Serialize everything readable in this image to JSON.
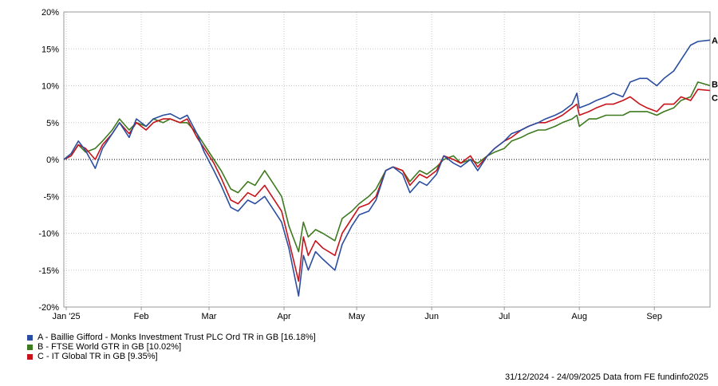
{
  "chart_data": {
    "type": "line",
    "ylim": [
      -20,
      20
    ],
    "yticks": [
      20,
      15,
      10,
      5,
      0,
      -5,
      -10,
      -15,
      -20
    ],
    "ytick_labels": [
      "20%",
      "15%",
      "10%",
      "5%",
      "0%",
      "-5%",
      "-10%",
      "-15%",
      "-20%"
    ],
    "x_start": "2024-12-31",
    "x_end": "2025-09-24",
    "xticks": [
      {
        "date": "2025-01-01",
        "label": "Jan '25"
      },
      {
        "date": "2025-02-01",
        "label": "Feb"
      },
      {
        "date": "2025-03-01",
        "label": "Mar"
      },
      {
        "date": "2025-04-01",
        "label": "Apr"
      },
      {
        "date": "2025-05-01",
        "label": "May"
      },
      {
        "date": "2025-06-01",
        "label": "Jun"
      },
      {
        "date": "2025-07-01",
        "label": "Jul"
      },
      {
        "date": "2025-08-01",
        "label": "Aug"
      },
      {
        "date": "2025-09-01",
        "label": "Sep"
      }
    ],
    "grid": true,
    "zero_line": "dotted",
    "series": [
      {
        "key": "A",
        "name": "A - Baillie Gifford - Monks Investment Trust PLC Ord TR in GB [16.18%]",
        "color": "#2b4ea1",
        "points": [
          [
            "2024-12-31",
            0
          ],
          [
            "2025-01-03",
            0.8
          ],
          [
            "2025-01-06",
            2.5
          ],
          [
            "2025-01-09",
            1.2
          ],
          [
            "2025-01-13",
            -1.2
          ],
          [
            "2025-01-16",
            1.5
          ],
          [
            "2025-01-20",
            3.5
          ],
          [
            "2025-01-23",
            5.0
          ],
          [
            "2025-01-27",
            3.0
          ],
          [
            "2025-01-30",
            5.5
          ],
          [
            "2025-02-03",
            4.5
          ],
          [
            "2025-02-06",
            5.5
          ],
          [
            "2025-02-10",
            6.0
          ],
          [
            "2025-02-13",
            6.2
          ],
          [
            "2025-02-17",
            5.5
          ],
          [
            "2025-02-20",
            6.0
          ],
          [
            "2025-02-24",
            3.5
          ],
          [
            "2025-02-27",
            1.0
          ],
          [
            "2025-03-03",
            -1.5
          ],
          [
            "2025-03-06",
            -3.5
          ],
          [
            "2025-03-10",
            -6.5
          ],
          [
            "2025-03-13",
            -7.0
          ],
          [
            "2025-03-17",
            -5.5
          ],
          [
            "2025-03-20",
            -6.0
          ],
          [
            "2025-03-24",
            -5.0
          ],
          [
            "2025-03-27",
            -6.5
          ],
          [
            "2025-03-31",
            -8.5
          ],
          [
            "2025-04-03",
            -12.0
          ],
          [
            "2025-04-07",
            -18.5
          ],
          [
            "2025-04-09",
            -13.0
          ],
          [
            "2025-04-11",
            -15.0
          ],
          [
            "2025-04-14",
            -12.5
          ],
          [
            "2025-04-17",
            -13.5
          ],
          [
            "2025-04-22",
            -15.0
          ],
          [
            "2025-04-25",
            -11.5
          ],
          [
            "2025-04-29",
            -9.0
          ],
          [
            "2025-05-02",
            -7.5
          ],
          [
            "2025-05-06",
            -7.0
          ],
          [
            "2025-05-09",
            -5.5
          ],
          [
            "2025-05-13",
            -1.5
          ],
          [
            "2025-05-16",
            -1.0
          ],
          [
            "2025-05-20",
            -2.0
          ],
          [
            "2025-05-23",
            -4.5
          ],
          [
            "2025-05-27",
            -3.0
          ],
          [
            "2025-05-30",
            -3.5
          ],
          [
            "2025-06-03",
            -2.0
          ],
          [
            "2025-06-06",
            0.5
          ],
          [
            "2025-06-10",
            -0.5
          ],
          [
            "2025-06-13",
            -1.0
          ],
          [
            "2025-06-17",
            0.0
          ],
          [
            "2025-06-20",
            -1.5
          ],
          [
            "2025-06-24",
            0.5
          ],
          [
            "2025-06-27",
            1.5
          ],
          [
            "2025-07-01",
            2.5
          ],
          [
            "2025-07-04",
            3.5
          ],
          [
            "2025-07-08",
            4.0
          ],
          [
            "2025-07-11",
            4.5
          ],
          [
            "2025-07-15",
            5.0
          ],
          [
            "2025-07-18",
            5.5
          ],
          [
            "2025-07-22",
            6.0
          ],
          [
            "2025-07-25",
            6.5
          ],
          [
            "2025-07-29",
            7.5
          ],
          [
            "2025-07-31",
            9.0
          ],
          [
            "2025-08-01",
            7.0
          ],
          [
            "2025-08-05",
            7.5
          ],
          [
            "2025-08-08",
            8.0
          ],
          [
            "2025-08-12",
            8.5
          ],
          [
            "2025-08-15",
            9.0
          ],
          [
            "2025-08-19",
            8.5
          ],
          [
            "2025-08-22",
            10.5
          ],
          [
            "2025-08-26",
            11.0
          ],
          [
            "2025-08-29",
            11.0
          ],
          [
            "2025-09-02",
            10.0
          ],
          [
            "2025-09-05",
            11.0
          ],
          [
            "2025-09-09",
            12.0
          ],
          [
            "2025-09-12",
            13.5
          ],
          [
            "2025-09-16",
            15.5
          ],
          [
            "2025-09-19",
            16.0
          ],
          [
            "2025-09-24",
            16.18
          ]
        ]
      },
      {
        "key": "B",
        "name": "B - FTSE World GTR in GB [10.02%]",
        "color": "#3e7a1f",
        "points": [
          [
            "2024-12-31",
            0
          ],
          [
            "2025-01-03",
            0.5
          ],
          [
            "2025-01-06",
            2.0
          ],
          [
            "2025-01-09",
            1.0
          ],
          [
            "2025-01-13",
            1.5
          ],
          [
            "2025-01-16",
            2.5
          ],
          [
            "2025-01-20",
            4.0
          ],
          [
            "2025-01-23",
            5.5
          ],
          [
            "2025-01-27",
            4.0
          ],
          [
            "2025-01-30",
            5.0
          ],
          [
            "2025-02-03",
            4.5
          ],
          [
            "2025-02-06",
            5.5
          ],
          [
            "2025-02-10",
            5.0
          ],
          [
            "2025-02-13",
            5.5
          ],
          [
            "2025-02-17",
            5.0
          ],
          [
            "2025-02-20",
            5.0
          ],
          [
            "2025-02-24",
            3.5
          ],
          [
            "2025-02-27",
            2.0
          ],
          [
            "2025-03-03",
            0.0
          ],
          [
            "2025-03-06",
            -1.5
          ],
          [
            "2025-03-10",
            -4.0
          ],
          [
            "2025-03-13",
            -4.5
          ],
          [
            "2025-03-17",
            -3.0
          ],
          [
            "2025-03-20",
            -3.5
          ],
          [
            "2025-03-24",
            -1.5
          ],
          [
            "2025-03-27",
            -3.0
          ],
          [
            "2025-03-31",
            -5.0
          ],
          [
            "2025-04-03",
            -9.0
          ],
          [
            "2025-04-07",
            -12.5
          ],
          [
            "2025-04-09",
            -8.5
          ],
          [
            "2025-04-11",
            -10.5
          ],
          [
            "2025-04-14",
            -9.5
          ],
          [
            "2025-04-17",
            -10.0
          ],
          [
            "2025-04-22",
            -11.0
          ],
          [
            "2025-04-25",
            -8.0
          ],
          [
            "2025-04-29",
            -7.0
          ],
          [
            "2025-05-02",
            -6.0
          ],
          [
            "2025-05-06",
            -5.0
          ],
          [
            "2025-05-09",
            -4.0
          ],
          [
            "2025-05-13",
            -1.5
          ],
          [
            "2025-05-16",
            -1.0
          ],
          [
            "2025-05-20",
            -1.5
          ],
          [
            "2025-05-23",
            -3.0
          ],
          [
            "2025-05-27",
            -1.5
          ],
          [
            "2025-05-30",
            -2.0
          ],
          [
            "2025-06-03",
            -1.0
          ],
          [
            "2025-06-06",
            0.0
          ],
          [
            "2025-06-10",
            0.5
          ],
          [
            "2025-06-13",
            -0.5
          ],
          [
            "2025-06-17",
            0.0
          ],
          [
            "2025-06-20",
            -0.5
          ],
          [
            "2025-06-24",
            0.5
          ],
          [
            "2025-06-27",
            1.0
          ],
          [
            "2025-07-01",
            1.5
          ],
          [
            "2025-07-04",
            2.5
          ],
          [
            "2025-07-08",
            3.0
          ],
          [
            "2025-07-11",
            3.5
          ],
          [
            "2025-07-15",
            4.0
          ],
          [
            "2025-07-18",
            4.0
          ],
          [
            "2025-07-22",
            4.5
          ],
          [
            "2025-07-25",
            5.0
          ],
          [
            "2025-07-29",
            5.5
          ],
          [
            "2025-07-31",
            6.0
          ],
          [
            "2025-08-01",
            4.5
          ],
          [
            "2025-08-05",
            5.5
          ],
          [
            "2025-08-08",
            5.5
          ],
          [
            "2025-08-12",
            6.0
          ],
          [
            "2025-08-15",
            6.0
          ],
          [
            "2025-08-19",
            6.0
          ],
          [
            "2025-08-22",
            6.5
          ],
          [
            "2025-08-26",
            6.5
          ],
          [
            "2025-08-29",
            6.5
          ],
          [
            "2025-09-02",
            6.0
          ],
          [
            "2025-09-05",
            6.5
          ],
          [
            "2025-09-09",
            7.0
          ],
          [
            "2025-09-12",
            8.0
          ],
          [
            "2025-09-16",
            8.5
          ],
          [
            "2025-09-19",
            10.5
          ],
          [
            "2025-09-24",
            10.02
          ]
        ]
      },
      {
        "key": "C",
        "name": "C - IT Global TR in GB [9.35%]",
        "color": "#c8131b",
        "points": [
          [
            "2024-12-31",
            0
          ],
          [
            "2025-01-03",
            0.5
          ],
          [
            "2025-01-06",
            2.0
          ],
          [
            "2025-01-09",
            1.5
          ],
          [
            "2025-01-13",
            0.0
          ],
          [
            "2025-01-16",
            2.0
          ],
          [
            "2025-01-20",
            3.5
          ],
          [
            "2025-01-23",
            5.0
          ],
          [
            "2025-01-27",
            3.5
          ],
          [
            "2025-01-30",
            5.0
          ],
          [
            "2025-02-03",
            4.0
          ],
          [
            "2025-02-06",
            5.0
          ],
          [
            "2025-02-10",
            5.5
          ],
          [
            "2025-02-13",
            5.5
          ],
          [
            "2025-02-17",
            5.0
          ],
          [
            "2025-02-20",
            5.5
          ],
          [
            "2025-02-24",
            3.0
          ],
          [
            "2025-02-27",
            1.5
          ],
          [
            "2025-03-03",
            -0.5
          ],
          [
            "2025-03-06",
            -2.5
          ],
          [
            "2025-03-10",
            -5.5
          ],
          [
            "2025-03-13",
            -6.0
          ],
          [
            "2025-03-17",
            -4.5
          ],
          [
            "2025-03-20",
            -5.0
          ],
          [
            "2025-03-24",
            -3.5
          ],
          [
            "2025-03-27",
            -5.0
          ],
          [
            "2025-03-31",
            -7.0
          ],
          [
            "2025-04-03",
            -11.0
          ],
          [
            "2025-04-07",
            -16.5
          ],
          [
            "2025-04-09",
            -10.5
          ],
          [
            "2025-04-11",
            -13.0
          ],
          [
            "2025-04-14",
            -11.0
          ],
          [
            "2025-04-17",
            -12.0
          ],
          [
            "2025-04-22",
            -13.0
          ],
          [
            "2025-04-25",
            -10.0
          ],
          [
            "2025-04-29",
            -8.0
          ],
          [
            "2025-05-02",
            -6.5
          ],
          [
            "2025-05-06",
            -6.0
          ],
          [
            "2025-05-09",
            -5.0
          ],
          [
            "2025-05-13",
            -1.5
          ],
          [
            "2025-05-16",
            -1.0
          ],
          [
            "2025-05-20",
            -1.5
          ],
          [
            "2025-05-23",
            -3.5
          ],
          [
            "2025-05-27",
            -2.0
          ],
          [
            "2025-05-30",
            -2.5
          ],
          [
            "2025-06-03",
            -1.5
          ],
          [
            "2025-06-06",
            0.5
          ],
          [
            "2025-06-10",
            0.0
          ],
          [
            "2025-06-13",
            -0.5
          ],
          [
            "2025-06-17",
            0.5
          ],
          [
            "2025-06-20",
            -1.0
          ],
          [
            "2025-06-24",
            0.5
          ],
          [
            "2025-06-27",
            1.5
          ],
          [
            "2025-07-01",
            2.5
          ],
          [
            "2025-07-04",
            3.0
          ],
          [
            "2025-07-08",
            4.0
          ],
          [
            "2025-07-11",
            4.5
          ],
          [
            "2025-07-15",
            5.0
          ],
          [
            "2025-07-18",
            5.0
          ],
          [
            "2025-07-22",
            5.5
          ],
          [
            "2025-07-25",
            6.0
          ],
          [
            "2025-07-29",
            7.0
          ],
          [
            "2025-07-31",
            7.5
          ],
          [
            "2025-08-01",
            6.0
          ],
          [
            "2025-08-05",
            6.5
          ],
          [
            "2025-08-08",
            7.0
          ],
          [
            "2025-08-12",
            7.5
          ],
          [
            "2025-08-15",
            7.5
          ],
          [
            "2025-08-19",
            8.0
          ],
          [
            "2025-08-22",
            8.5
          ],
          [
            "2025-08-26",
            7.5
          ],
          [
            "2025-08-29",
            7.0
          ],
          [
            "2025-09-02",
            6.5
          ],
          [
            "2025-09-05",
            7.5
          ],
          [
            "2025-09-09",
            7.5
          ],
          [
            "2025-09-12",
            8.5
          ],
          [
            "2025-09-16",
            8.0
          ],
          [
            "2025-09-19",
            9.5
          ],
          [
            "2025-09-24",
            9.35
          ]
        ]
      }
    ]
  },
  "footer": {
    "text": "31/12/2024 - 24/09/2025 Data from FE fundinfo2025"
  }
}
